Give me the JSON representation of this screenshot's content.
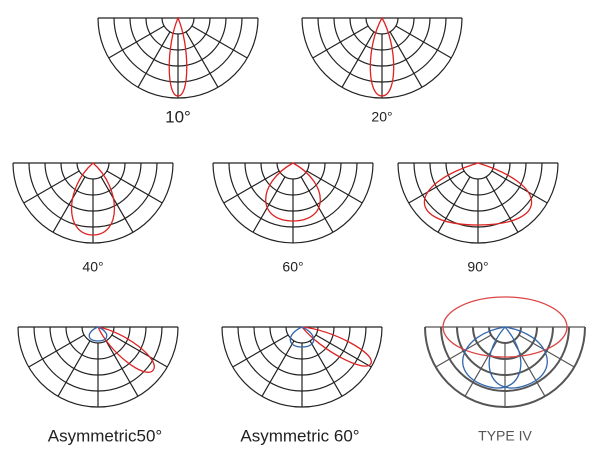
{
  "labels": [
    "10°",
    "20°",
    "40°",
    "60°",
    "90°",
    "Asymmetric50°",
    "Asymmetric 60°",
    "TYPE IV"
  ]
}
